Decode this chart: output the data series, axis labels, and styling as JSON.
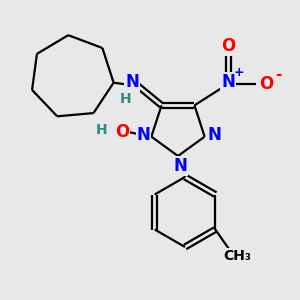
{
  "bg_color": "#e8e8e8",
  "atom_colors": {
    "N": "#0000ff",
    "O": "#ff0000",
    "C": "#000000",
    "H": "#2e8b8b"
  },
  "bond_color": "#000000",
  "bond_width": 1.6,
  "font_size_atom": 12,
  "font_size_charge": 9,
  "font_size_H": 10,
  "font_size_methyl": 10
}
